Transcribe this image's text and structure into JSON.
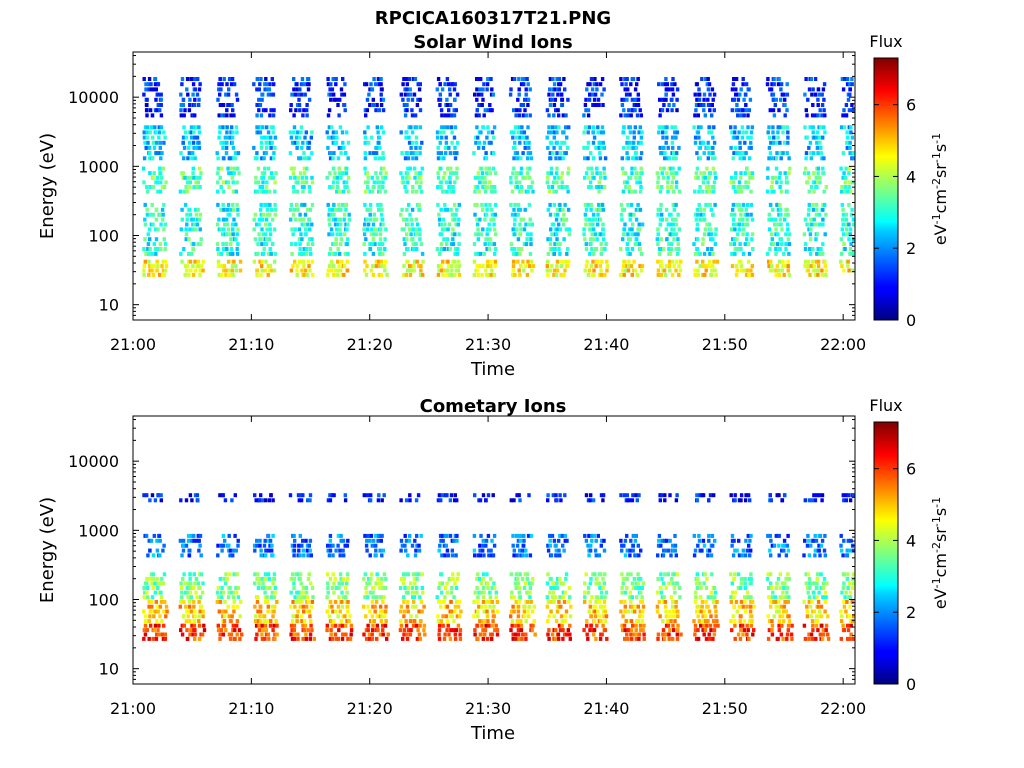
{
  "figure_title": "RPCICA160317T21.PNG",
  "chart_data": [
    {
      "type": "heatmap",
      "title": "Solar Wind Ions",
      "xlabel": "Time",
      "ylabel": "Energy (eV)",
      "y_scale": "log",
      "ylim": [
        6,
        45000
      ],
      "x_range_minutes": [
        0,
        61
      ],
      "x_tick_labels": [
        "21:00",
        "21:10",
        "21:20",
        "21:30",
        "21:40",
        "21:50",
        "22:00"
      ],
      "y_tick_labels": [
        "10",
        "100",
        "1000",
        "10000"
      ],
      "y_ticks": [
        10,
        100,
        1000,
        10000
      ],
      "colorbar_title": "Flux",
      "colorbar_label": "eV-1cm-2sr-1s-1",
      "colorbar_range": [
        0,
        7.3
      ],
      "colorbar_ticks": [
        "0",
        "2",
        "4",
        "6"
      ],
      "scan_period_minutes": 3.1,
      "scan_count": 20,
      "note_bands": [
        {
          "energy_low": 25,
          "energy_high": 45,
          "flux": 4.6
        },
        {
          "energy_low": 50,
          "energy_high": 300,
          "flux": 3.0
        },
        {
          "energy_low": 400,
          "energy_high": 1000,
          "flux": 3.3
        },
        {
          "energy_low": 1200,
          "energy_high": 4000,
          "flux": 2.4
        },
        {
          "energy_low": 5000,
          "energy_high": 20000,
          "flux": 1.2
        }
      ]
    },
    {
      "type": "heatmap",
      "title": "Cometary Ions",
      "xlabel": "Time",
      "ylabel": "Energy (eV)",
      "y_scale": "log",
      "ylim": [
        6,
        45000
      ],
      "x_range_minutes": [
        0,
        61
      ],
      "x_tick_labels": [
        "21:00",
        "21:10",
        "21:20",
        "21:30",
        "21:40",
        "21:50",
        "22:00"
      ],
      "y_tick_labels": [
        "10",
        "100",
        "1000",
        "10000"
      ],
      "y_ticks": [
        10,
        100,
        1000,
        10000
      ],
      "colorbar_title": "Flux",
      "colorbar_label": "eV-1cm-2sr-1s-1",
      "colorbar_range": [
        0,
        7.3
      ],
      "colorbar_ticks": [
        "0",
        "2",
        "4",
        "6"
      ],
      "scan_period_minutes": 3.1,
      "scan_count": 20,
      "note_bands": [
        {
          "energy_low": 25,
          "energy_high": 45,
          "flux": 6.0
        },
        {
          "energy_low": 45,
          "energy_high": 100,
          "flux": 4.9
        },
        {
          "energy_low": 100,
          "energy_high": 250,
          "flux": 3.6
        },
        {
          "energy_low": 400,
          "energy_high": 900,
          "flux": 1.8
        },
        {
          "energy_low": 2500,
          "energy_high": 3500,
          "flux": 1.0
        }
      ]
    }
  ]
}
